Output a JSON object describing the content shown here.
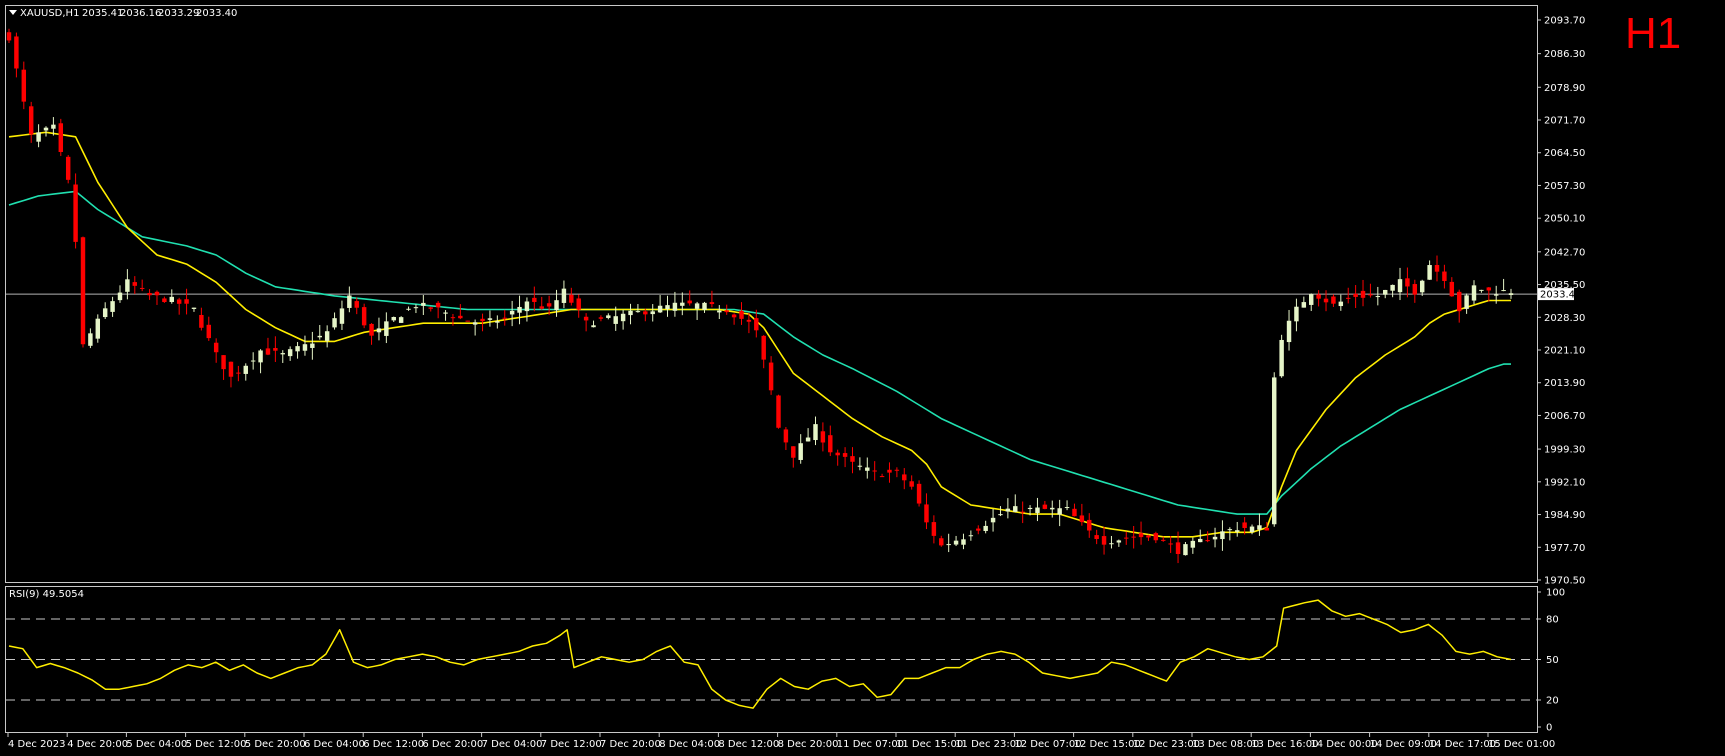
{
  "header": {
    "symbol": "XAUUSD,H1",
    "open": "2035.41",
    "high": "2036.16",
    "low": "2033.29",
    "close": "2033.40",
    "timeframe_label": "H1"
  },
  "colors": {
    "background": "#000000",
    "bull": "#e6f5c8",
    "bear": "#ff0000",
    "ma_fast": "#ffee00",
    "ma_slow": "#20e0b0",
    "rsi": "#ffee00",
    "frame": "#c8c8c8",
    "bid_line": "#b4b4b4",
    "timeframe_label": "#ff0000"
  },
  "chart_data": [
    {
      "type": "candlestick",
      "symbol": "XAUUSD",
      "period": "H1",
      "ylim": [
        1970.5,
        2093.7
      ],
      "y_ticks": [
        "2093.70",
        "2086.30",
        "2078.90",
        "2071.70",
        "2064.50",
        "2057.30",
        "2050.10",
        "2042.70",
        "2035.50",
        "2028.30",
        "2021.10",
        "2013.90",
        "2006.70",
        "1999.30",
        "1992.10",
        "1984.90",
        "1977.70",
        "1970.50"
      ],
      "current_price": "2033.40",
      "x_ticks": [
        "4 Dec 2023",
        "4 Dec 20:00",
        "5 Dec 04:00",
        "5 Dec 12:00",
        "5 Dec 20:00",
        "6 Dec 04:00",
        "6 Dec 12:00",
        "6 Dec 20:00",
        "7 Dec 04:00",
        "7 Dec 12:00",
        "7 Dec 20:00",
        "8 Dec 04:00",
        "8 Dec 12:00",
        "8 Dec 20:00",
        "11 Dec 07:00",
        "11 Dec 15:00",
        "11 Dec 23:00",
        "12 Dec 07:00",
        "12 Dec 15:00",
        "12 Dec 23:00",
        "13 Dec 08:00",
        "13 Dec 16:00",
        "14 Dec 00:00",
        "14 Dec 09:00",
        "14 Dec 17:00",
        "15 Dec 01:00"
      ],
      "close_anchors": [
        [
          0,
          2090
        ],
        [
          3,
          2068
        ],
        [
          6,
          2070
        ],
        [
          8,
          2058
        ],
        [
          9,
          2045
        ],
        [
          10,
          2022
        ],
        [
          13,
          2030
        ],
        [
          16,
          2036
        ],
        [
          19,
          2033
        ],
        [
          22,
          2032
        ],
        [
          25,
          2030
        ],
        [
          28,
          2020
        ],
        [
          30,
          2015
        ],
        [
          34,
          2021
        ],
        [
          37,
          2020
        ],
        [
          40,
          2022
        ],
        [
          43,
          2025
        ],
        [
          46,
          2033
        ],
        [
          49,
          2024
        ],
        [
          52,
          2028
        ],
        [
          55,
          2031
        ],
        [
          58,
          2030
        ],
        [
          61,
          2028
        ],
        [
          64,
          2027
        ],
        [
          67,
          2028
        ],
        [
          70,
          2032
        ],
        [
          73,
          2030
        ],
        [
          75,
          2034
        ],
        [
          78,
          2027
        ],
        [
          81,
          2028
        ],
        [
          84,
          2029
        ],
        [
          87,
          2030
        ],
        [
          90,
          2031
        ],
        [
          93,
          2031
        ],
        [
          97,
          2030
        ],
        [
          100,
          2027
        ],
        [
          101,
          2025
        ],
        [
          103,
          2012
        ],
        [
          104,
          2004
        ],
        [
          106,
          1998
        ],
        [
          109,
          2004
        ],
        [
          111,
          1999
        ],
        [
          114,
          1996
        ],
        [
          117,
          1994
        ],
        [
          120,
          1994
        ],
        [
          122,
          1991
        ],
        [
          124,
          1983
        ],
        [
          126,
          1978
        ],
        [
          129,
          1980
        ],
        [
          132,
          1983
        ],
        [
          135,
          1986
        ],
        [
          138,
          1986
        ],
        [
          141,
          1986
        ],
        [
          143,
          1986
        ],
        [
          146,
          1981
        ],
        [
          148,
          1979
        ],
        [
          152,
          1980
        ],
        [
          155,
          1980
        ],
        [
          158,
          1977
        ],
        [
          161,
          1979
        ],
        [
          164,
          1981
        ],
        [
          166,
          1982
        ],
        [
          169,
          1982
        ],
        [
          170,
          1982
        ],
        [
          171,
          2015
        ],
        [
          172,
          2024
        ],
        [
          174,
          2030
        ],
        [
          176,
          2034
        ],
        [
          179,
          2031
        ],
        [
          182,
          2033
        ],
        [
          185,
          2033
        ],
        [
          188,
          2036
        ],
        [
          190,
          2034
        ],
        [
          192,
          2040
        ],
        [
          194,
          2037
        ],
        [
          196,
          2030
        ],
        [
          198,
          2035
        ],
        [
          200,
          2034
        ],
        [
          202,
          2034
        ]
      ],
      "ma_fast_anchors": [
        [
          0,
          2068
        ],
        [
          5,
          2069
        ],
        [
          9,
          2068
        ],
        [
          12,
          2058
        ],
        [
          16,
          2048
        ],
        [
          20,
          2042
        ],
        [
          24,
          2040
        ],
        [
          28,
          2036
        ],
        [
          32,
          2030
        ],
        [
          36,
          2026
        ],
        [
          40,
          2023
        ],
        [
          44,
          2023
        ],
        [
          48,
          2025
        ],
        [
          52,
          2026
        ],
        [
          56,
          2027
        ],
        [
          60,
          2027
        ],
        [
          64,
          2027
        ],
        [
          68,
          2028
        ],
        [
          72,
          2029
        ],
        [
          76,
          2030
        ],
        [
          80,
          2030
        ],
        [
          84,
          2030
        ],
        [
          88,
          2030
        ],
        [
          92,
          2030
        ],
        [
          96,
          2030
        ],
        [
          100,
          2029
        ],
        [
          102,
          2026
        ],
        [
          104,
          2021
        ],
        [
          106,
          2016
        ],
        [
          110,
          2011
        ],
        [
          114,
          2006
        ],
        [
          118,
          2002
        ],
        [
          122,
          1999
        ],
        [
          124,
          1996
        ],
        [
          126,
          1991
        ],
        [
          130,
          1987
        ],
        [
          134,
          1986
        ],
        [
          138,
          1985
        ],
        [
          142,
          1985
        ],
        [
          144,
          1984
        ],
        [
          148,
          1982
        ],
        [
          152,
          1981
        ],
        [
          156,
          1980
        ],
        [
          160,
          1980
        ],
        [
          164,
          1981
        ],
        [
          168,
          1981
        ],
        [
          170,
          1982
        ],
        [
          172,
          1991
        ],
        [
          174,
          1999
        ],
        [
          178,
          2008
        ],
        [
          182,
          2015
        ],
        [
          186,
          2020
        ],
        [
          190,
          2024
        ],
        [
          192,
          2027
        ],
        [
          194,
          2029
        ],
        [
          196,
          2030
        ],
        [
          198,
          2031
        ],
        [
          200,
          2032
        ],
        [
          202,
          2032
        ]
      ],
      "ma_slow_anchors": [
        [
          0,
          2053
        ],
        [
          4,
          2055
        ],
        [
          9,
          2056
        ],
        [
          12,
          2052
        ],
        [
          18,
          2046
        ],
        [
          24,
          2044
        ],
        [
          28,
          2042
        ],
        [
          32,
          2038
        ],
        [
          36,
          2035
        ],
        [
          40,
          2034
        ],
        [
          44,
          2033
        ],
        [
          50,
          2032
        ],
        [
          56,
          2031
        ],
        [
          62,
          2030
        ],
        [
          68,
          2030
        ],
        [
          74,
          2030
        ],
        [
          80,
          2030
        ],
        [
          86,
          2030
        ],
        [
          92,
          2030
        ],
        [
          98,
          2030
        ],
        [
          102,
          2029
        ],
        [
          106,
          2024
        ],
        [
          110,
          2020
        ],
        [
          114,
          2017
        ],
        [
          120,
          2012
        ],
        [
          126,
          2006
        ],
        [
          130,
          2003
        ],
        [
          134,
          2000
        ],
        [
          138,
          1997
        ],
        [
          142,
          1995
        ],
        [
          146,
          1993
        ],
        [
          150,
          1991
        ],
        [
          154,
          1989
        ],
        [
          158,
          1987
        ],
        [
          162,
          1986
        ],
        [
          166,
          1985
        ],
        [
          170,
          1985
        ],
        [
          172,
          1989
        ],
        [
          176,
          1995
        ],
        [
          180,
          2000
        ],
        [
          184,
          2004
        ],
        [
          188,
          2008
        ],
        [
          192,
          2011
        ],
        [
          196,
          2014
        ],
        [
          200,
          2017
        ],
        [
          202,
          2018
        ]
      ]
    },
    {
      "type": "line",
      "name": "RSI(9)",
      "indicator_label": "RSI(9) 49.5054",
      "ylim": [
        0,
        100
      ],
      "y_ticks": [
        "100",
        "80",
        "50",
        "20",
        "0"
      ],
      "levels": [
        80,
        50,
        20
      ],
      "anchors": [
        [
          0,
          60
        ],
        [
          2,
          58
        ],
        [
          4,
          44
        ],
        [
          6,
          47
        ],
        [
          8,
          44
        ],
        [
          10,
          40
        ],
        [
          12,
          35
        ],
        [
          14,
          28
        ],
        [
          16,
          28
        ],
        [
          18,
          30
        ],
        [
          20,
          32
        ],
        [
          22,
          36
        ],
        [
          24,
          42
        ],
        [
          26,
          46
        ],
        [
          28,
          44
        ],
        [
          30,
          48
        ],
        [
          32,
          42
        ],
        [
          34,
          46
        ],
        [
          36,
          40
        ],
        [
          38,
          36
        ],
        [
          40,
          40
        ],
        [
          42,
          44
        ],
        [
          44,
          46
        ],
        [
          46,
          54
        ],
        [
          48,
          72
        ],
        [
          50,
          48
        ],
        [
          52,
          44
        ],
        [
          54,
          46
        ],
        [
          56,
          50
        ],
        [
          58,
          52
        ],
        [
          60,
          54
        ],
        [
          62,
          52
        ],
        [
          64,
          48
        ],
        [
          66,
          46
        ],
        [
          68,
          50
        ],
        [
          70,
          52
        ],
        [
          72,
          54
        ],
        [
          74,
          56
        ],
        [
          76,
          60
        ],
        [
          78,
          62
        ],
        [
          80,
          68
        ],
        [
          81,
          72
        ],
        [
          82,
          44
        ],
        [
          84,
          48
        ],
        [
          86,
          52
        ],
        [
          88,
          50
        ],
        [
          90,
          48
        ],
        [
          92,
          50
        ],
        [
          94,
          56
        ],
        [
          96,
          60
        ],
        [
          98,
          48
        ],
        [
          100,
          46
        ],
        [
          102,
          28
        ],
        [
          104,
          20
        ],
        [
          106,
          16
        ],
        [
          108,
          14
        ],
        [
          110,
          28
        ],
        [
          112,
          36
        ],
        [
          114,
          30
        ],
        [
          116,
          28
        ],
        [
          118,
          34
        ],
        [
          120,
          36
        ],
        [
          122,
          30
        ],
        [
          124,
          32
        ],
        [
          126,
          22
        ],
        [
          128,
          24
        ],
        [
          130,
          36
        ],
        [
          132,
          36
        ],
        [
          134,
          40
        ],
        [
          136,
          44
        ],
        [
          138,
          44
        ],
        [
          140,
          50
        ],
        [
          142,
          54
        ],
        [
          144,
          56
        ],
        [
          146,
          54
        ],
        [
          148,
          48
        ],
        [
          150,
          40
        ],
        [
          152,
          38
        ],
        [
          154,
          36
        ],
        [
          156,
          38
        ],
        [
          158,
          40
        ],
        [
          160,
          48
        ],
        [
          162,
          46
        ],
        [
          164,
          42
        ],
        [
          166,
          38
        ],
        [
          168,
          34
        ],
        [
          170,
          48
        ],
        [
          172,
          52
        ],
        [
          174,
          58
        ],
        [
          176,
          55
        ],
        [
          178,
          52
        ],
        [
          180,
          50
        ],
        [
          182,
          52
        ],
        [
          184,
          60
        ],
        [
          185,
          88
        ],
        [
          188,
          92
        ],
        [
          190,
          94
        ],
        [
          192,
          86
        ],
        [
          194,
          82
        ],
        [
          196,
          84
        ],
        [
          198,
          80
        ],
        [
          200,
          76
        ],
        [
          202,
          70
        ],
        [
          204,
          72
        ],
        [
          206,
          76
        ],
        [
          208,
          68
        ],
        [
          210,
          56
        ],
        [
          212,
          54
        ],
        [
          214,
          56
        ],
        [
          216,
          52
        ],
        [
          218,
          50
        ]
      ]
    }
  ]
}
